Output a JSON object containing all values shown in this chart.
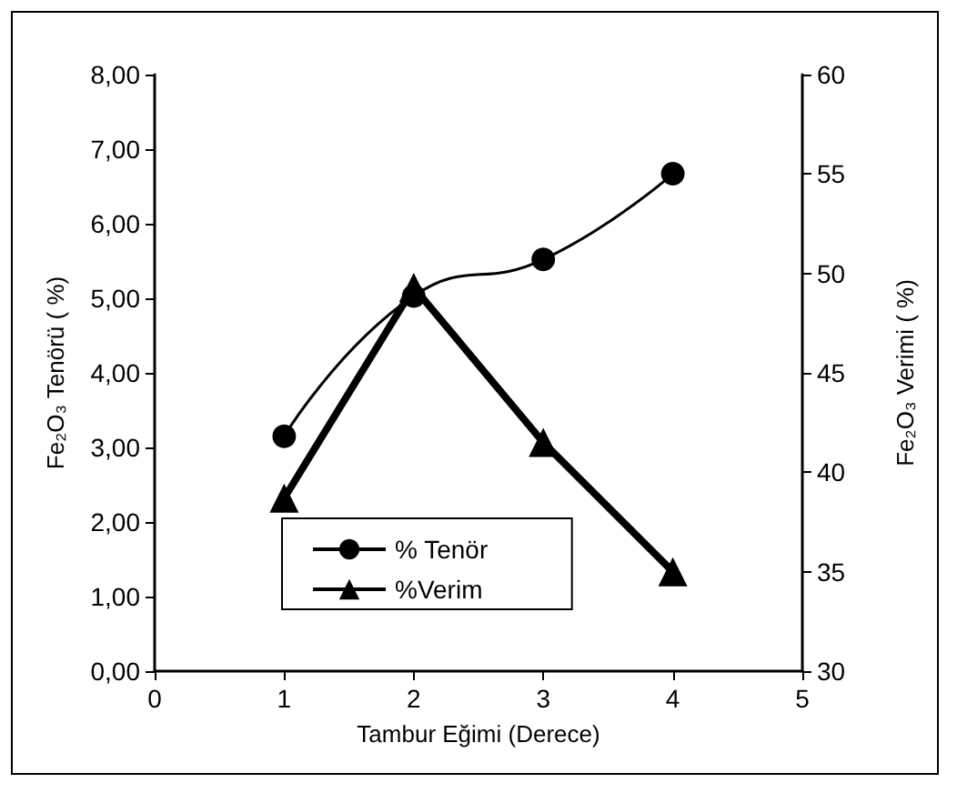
{
  "chart_data": {
    "type": "line",
    "xlabel": "Tambur Eğimi (Derece)",
    "ylabel": "Fe₂O₃ Tenörü ( %)",
    "y2label": "Fe₂O₃ Verimi ( %)",
    "x": [
      1,
      2,
      3,
      4
    ],
    "series": [
      {
        "name": "% Tenör",
        "color": "#000000",
        "values": [
          3.15,
          5.03,
          5.52,
          6.67
        ],
        "marker": "circle"
      },
      {
        "name": "%Verim",
        "color": "#000000",
        "values": [
          38.7,
          49.3,
          41.5,
          35.0
        ],
        "marker": "triangle",
        "axis": "y2"
      }
    ],
    "xlim": [
      0,
      5
    ],
    "xticks": [
      0,
      1,
      2,
      3,
      4,
      5
    ],
    "ylim": [
      0,
      8
    ],
    "yticks": [
      {
        "value": 0,
        "label": "0,00"
      },
      {
        "value": 1,
        "label": "1,00"
      },
      {
        "value": 2,
        "label": "2,00"
      },
      {
        "value": 3,
        "label": "3,00"
      },
      {
        "value": 4,
        "label": "4,00"
      },
      {
        "value": 5,
        "label": "5,00"
      },
      {
        "value": 6,
        "label": "6,00"
      },
      {
        "value": 7,
        "label": "7,00"
      },
      {
        "value": 8,
        "label": "8,00"
      }
    ],
    "y2lim": [
      30,
      60
    ],
    "y2ticks": [
      30,
      35,
      40,
      45,
      50,
      55,
      60
    ],
    "legend": "bottom",
    "grid": false,
    "line_style": "solid"
  }
}
